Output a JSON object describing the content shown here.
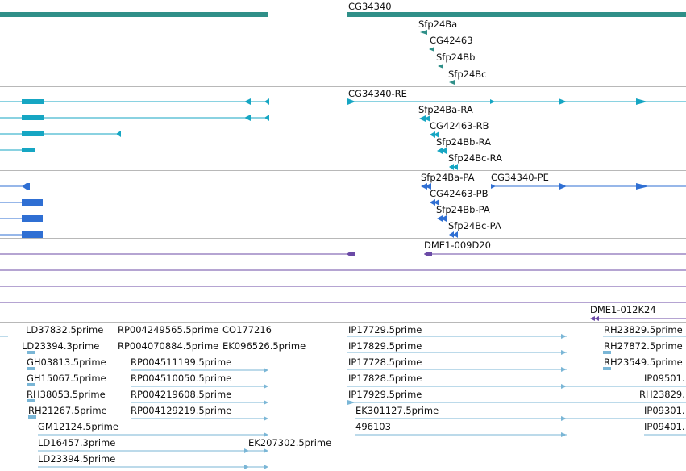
{
  "colors": {
    "gene": "#2f8f88",
    "mrna": "#16a6c3",
    "cds": "#2f6fd3",
    "clone": "#6b4aa6",
    "est": "#7ab6d6",
    "separator": "#b8b8b8"
  },
  "tracks": {
    "genes": {
      "labels": [
        "CG34340",
        "Sfp24Ba",
        "CG42463",
        "Sfp24Bb",
        "Sfp24Bc"
      ]
    },
    "transcripts": {
      "labels": [
        "CG34340-RE",
        "Sfp24Ba-RA",
        "CG42463-RB",
        "Sfp24Bb-RA",
        "Sfp24Bc-RA"
      ]
    },
    "proteins": {
      "labels": [
        "Sfp24Ba-PA",
        "CG34340-PE",
        "CG42463-PB",
        "Sfp24Bb-PA",
        "Sfp24Bc-PA"
      ]
    },
    "clones": {
      "labels": [
        "DME1-009D20",
        "DME1-012K24"
      ]
    },
    "ests": {
      "labels": [
        "LD37832.5prime",
        "RP004249565.5prime",
        "CO177216",
        "IP17729.5prime",
        "RH23829.5prime",
        "LD23394.3prime",
        "RP004070884.5prime",
        "EK096526.5prime",
        "IP17829.5prime",
        "RH27872.5prime",
        "GH03813.5prime",
        "RP004511199.5prime",
        "IP17728.5prime",
        "RH23549.5prime",
        "GH15067.5prime",
        "RP004510050.5prime",
        "IP17828.5prime",
        "IP09501.",
        "RH38053.5prime",
        "RP004219608.5prime",
        "IP17929.5prime",
        "RH23829.",
        "RH21267.5prime",
        "RP004129219.5prime",
        "EK301127.5prime",
        "IP09301.",
        "GM12124.5prime",
        "496103",
        "IP09401.",
        "LD16457.3prime",
        "EK207302.5prime",
        "LD23394.5prime"
      ]
    }
  }
}
